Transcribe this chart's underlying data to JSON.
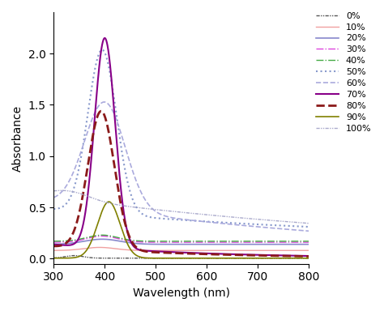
{
  "xlabel": "Wavelength (nm)",
  "ylabel": "Absorbance",
  "xlim": [
    300,
    800
  ],
  "ylim": [
    -0.05,
    2.4
  ],
  "yticks": [
    0,
    0.5,
    1.0,
    1.5,
    2.0
  ],
  "xticks": [
    300,
    400,
    500,
    600,
    700,
    800
  ],
  "series": [
    {
      "label": "0%",
      "color": "#555555",
      "linestyle": "dashdotdot",
      "linewidth": 1.0
    },
    {
      "label": "10%",
      "color": "#f0a0a0",
      "linestyle": "solid",
      "linewidth": 1.0
    },
    {
      "label": "20%",
      "color": "#8888cc",
      "linestyle": "solid",
      "linewidth": 1.2
    },
    {
      "label": "30%",
      "color": "#dd44dd",
      "linestyle": "dashdot",
      "linewidth": 1.0
    },
    {
      "label": "40%",
      "color": "#44aa44",
      "linestyle": "dashdot",
      "linewidth": 1.0
    },
    {
      "label": "50%",
      "color": "#8899cc",
      "linestyle": "dotted",
      "linewidth": 1.5
    },
    {
      "label": "60%",
      "color": "#aaaadd",
      "linestyle": "dashed",
      "linewidth": 1.2
    },
    {
      "label": "70%",
      "color": "#880088",
      "linestyle": "solid",
      "linewidth": 1.5
    },
    {
      "label": "80%",
      "color": "#8b1a1a",
      "linestyle": "dashed",
      "linewidth": 2.0
    },
    {
      "label": "90%",
      "color": "#808000",
      "linestyle": "solid",
      "linewidth": 1.2
    },
    {
      "label": "100%",
      "color": "#aaaacc",
      "linestyle": "dashdotdot",
      "linewidth": 1.0
    }
  ],
  "figsize": [
    4.74,
    3.84
  ],
  "dpi": 100
}
